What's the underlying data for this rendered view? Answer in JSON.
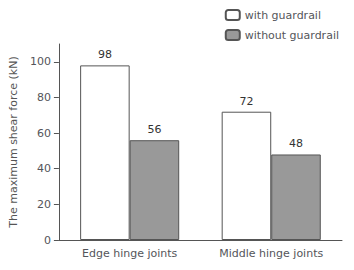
{
  "chart_data": {
    "type": "bar",
    "categories": [
      "Edge hinge joints",
      "Middle hinge joints"
    ],
    "series": [
      {
        "name": "with guardrail",
        "color": "#ffffff",
        "values": [
          98,
          72
        ]
      },
      {
        "name": "without guardrail",
        "color": "#999999",
        "values": [
          56,
          48
        ]
      }
    ],
    "ylabel": "The maximum shear force (kN)",
    "ylim": [
      0,
      110
    ],
    "yticks": [
      0,
      20,
      40,
      60,
      80,
      100
    ],
    "grid": false,
    "legend": "upper right",
    "data_labels": true
  }
}
